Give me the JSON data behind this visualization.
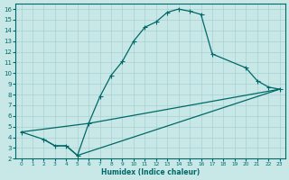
{
  "xlabel": "Humidex (Indice chaleur)",
  "bg_color": "#c8e8e8",
  "grid_color": "#a8d0d0",
  "line_color": "#006868",
  "xlim": [
    -0.5,
    23.5
  ],
  "ylim": [
    2,
    16.5
  ],
  "xticks": [
    0,
    1,
    2,
    3,
    4,
    5,
    6,
    7,
    8,
    9,
    10,
    11,
    12,
    13,
    14,
    15,
    16,
    17,
    18,
    19,
    20,
    21,
    22,
    23
  ],
  "yticks": [
    2,
    3,
    4,
    5,
    6,
    7,
    8,
    9,
    10,
    11,
    12,
    13,
    14,
    15,
    16
  ],
  "line1_x": [
    0,
    2,
    3,
    4,
    5,
    6,
    7,
    8,
    9,
    10,
    11,
    12,
    13,
    14,
    15,
    16,
    17,
    20,
    21,
    22,
    23
  ],
  "line1_y": [
    4.5,
    3.8,
    3.2,
    3.2,
    2.3,
    5.3,
    7.8,
    9.8,
    11.1,
    13.0,
    14.3,
    14.8,
    15.7,
    16.0,
    15.8,
    15.5,
    11.8,
    10.5,
    9.3,
    8.7,
    8.5
  ],
  "line3_x": [
    0,
    6,
    23
  ],
  "line3_y": [
    4.5,
    5.3,
    8.5
  ],
  "line4_x": [
    2,
    3,
    4,
    5,
    23
  ],
  "line4_y": [
    3.8,
    3.2,
    3.2,
    2.3,
    8.5
  ]
}
